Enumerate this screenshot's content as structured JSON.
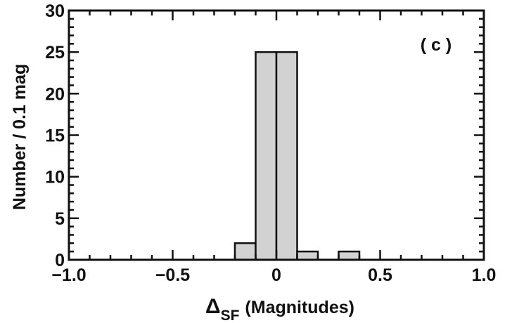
{
  "chart_data": {
    "type": "bar",
    "panel_label": "( c )",
    "xlabel_main": "Δ",
    "xlabel_sub": "SF",
    "xlabel_rest": "(Magnitudes)",
    "ylabel": "Number / 0.1 mag",
    "xlim": [
      -1.0,
      1.0
    ],
    "ylim": [
      0,
      30
    ],
    "bin_width": 0.1,
    "bins": [
      {
        "left": -0.2,
        "value": 2
      },
      {
        "left": -0.1,
        "value": 25
      },
      {
        "left": 0.0,
        "value": 25
      },
      {
        "left": 0.1,
        "value": 1
      },
      {
        "left": 0.3,
        "value": 1
      }
    ],
    "xticks": [
      -1.0,
      -0.5,
      0.0,
      0.5,
      1.0
    ],
    "xtick_labels": [
      "−1.0",
      "−0.5",
      "0",
      "0.5",
      "1.0"
    ],
    "yticks": [
      0,
      5,
      10,
      15,
      20,
      25,
      30
    ],
    "ytick_labels": [
      "0",
      "5",
      "10",
      "15",
      "20",
      "25",
      "30"
    ],
    "bar_color": "#d2d2d2",
    "edge_color": "#111111",
    "grid": false
  }
}
